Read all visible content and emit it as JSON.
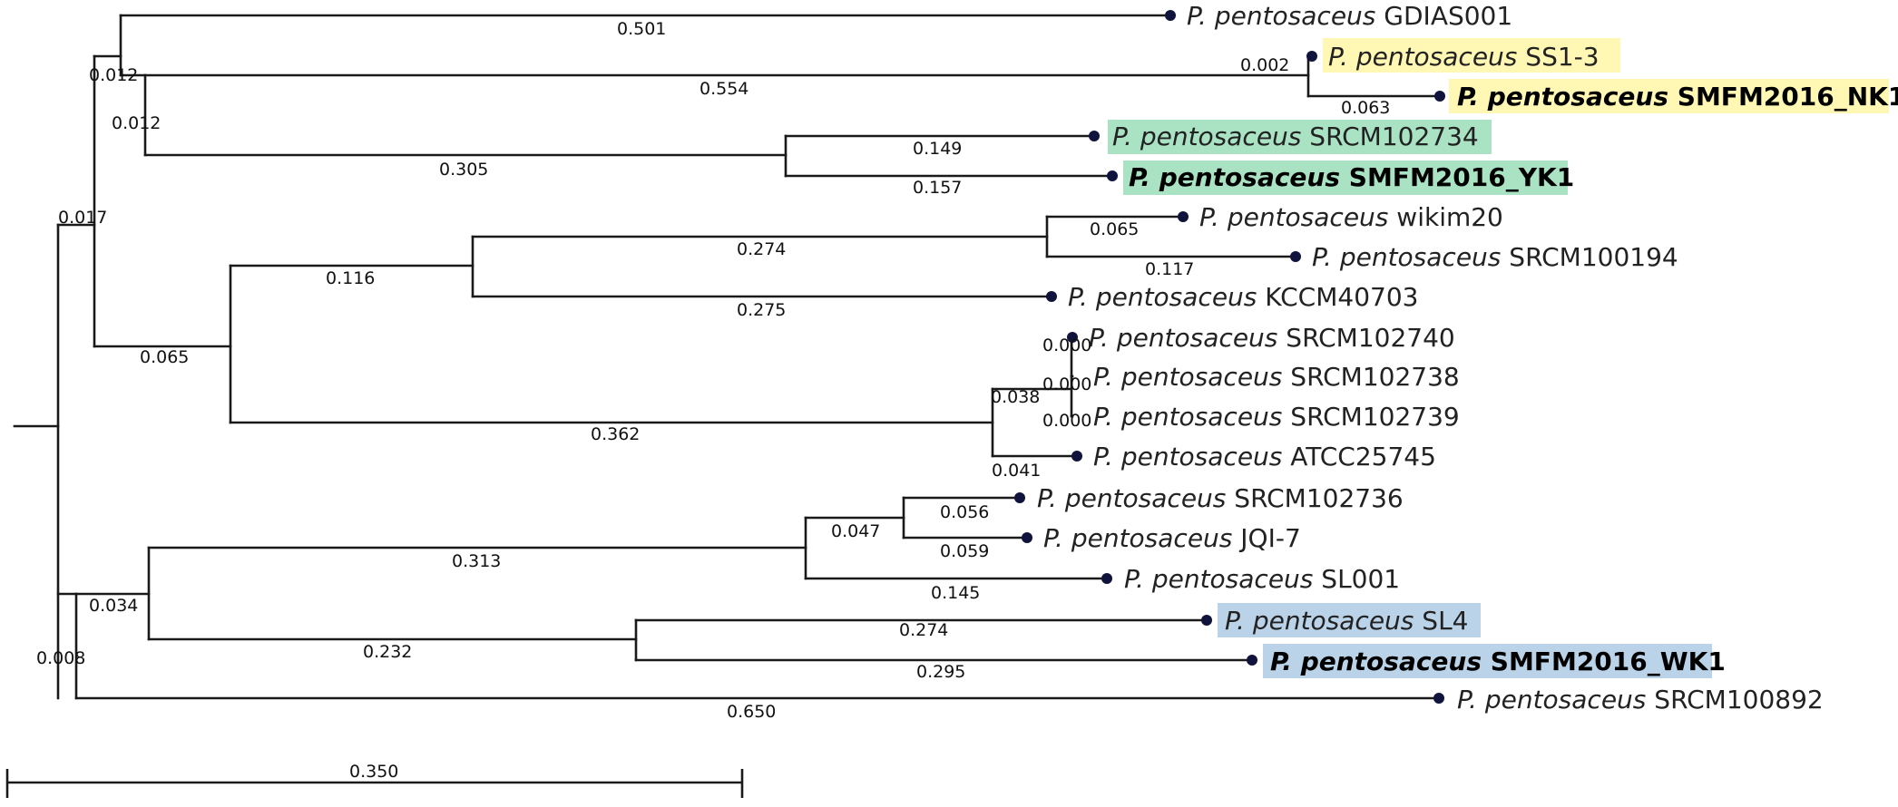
{
  "tree": {
    "tips": [
      {
        "id": "gdias001",
        "genus": "P. pentosaceus",
        "strain": "GDIAS001",
        "highlight": "",
        "bold": false
      },
      {
        "id": "ss1-3",
        "genus": "P. pentosaceus",
        "strain": "SS1-3",
        "highlight": "yellow",
        "bold": false
      },
      {
        "id": "nk1",
        "genus": "P. pentosaceus",
        "strain": "SMFM2016_NK1",
        "highlight": "yellow",
        "bold": true
      },
      {
        "id": "srcm102734",
        "genus": "P. pentosaceus",
        "strain": "SRCM102734",
        "highlight": "green",
        "bold": false
      },
      {
        "id": "yk1",
        "genus": "P. pentosaceus",
        "strain": "SMFM2016_YK1",
        "highlight": "green",
        "bold": true
      },
      {
        "id": "wikim20",
        "genus": "P. pentosaceus",
        "strain": "wikim20",
        "highlight": "",
        "bold": false
      },
      {
        "id": "srcm100194",
        "genus": "P. pentosaceus",
        "strain": "SRCM100194",
        "highlight": "",
        "bold": false
      },
      {
        "id": "kccm40703",
        "genus": "P. pentosaceus",
        "strain": "KCCM40703",
        "highlight": "",
        "bold": false
      },
      {
        "id": "srcm102740",
        "genus": "P. pentosaceus",
        "strain": "SRCM102740",
        "highlight": "",
        "bold": false
      },
      {
        "id": "srcm102738",
        "genus": "P. pentosaceus",
        "strain": "SRCM102738",
        "highlight": "",
        "bold": false
      },
      {
        "id": "srcm102739",
        "genus": "P. pentosaceus",
        "strain": "SRCM102739",
        "highlight": "",
        "bold": false
      },
      {
        "id": "atcc25745",
        "genus": "P. pentosaceus",
        "strain": "ATCC25745",
        "highlight": "",
        "bold": false
      },
      {
        "id": "srcm102736",
        "genus": "P. pentosaceus",
        "strain": "SRCM102736",
        "highlight": "",
        "bold": false
      },
      {
        "id": "jqi7",
        "genus": "P. pentosaceus",
        "strain": "JQI-7",
        "highlight": "",
        "bold": false
      },
      {
        "id": "sl001",
        "genus": "P. pentosaceus",
        "strain": "SL001",
        "highlight": "",
        "bold": false
      },
      {
        "id": "sl4",
        "genus": "P. pentosaceus",
        "strain": "SL4",
        "highlight": "blue",
        "bold": false
      },
      {
        "id": "wk1",
        "genus": "P. pentosaceus",
        "strain": "SMFM2016_WK1",
        "highlight": "blue",
        "bold": true
      },
      {
        "id": "srcm100892",
        "genus": "P. pentosaceus",
        "strain": "SRCM100892",
        "highlight": "",
        "bold": false
      }
    ],
    "branch_lengths": [
      "0.501",
      "0.012",
      "0.554",
      "0.002",
      "0.063",
      "0.012",
      "0.305",
      "0.149",
      "0.157",
      "0.017",
      "0.274",
      "0.065",
      "0.117",
      "0.116",
      "0.275",
      "0.065",
      "0.000",
      "0.000",
      "0.000",
      "0.038",
      "0.041",
      "0.362",
      "0.056",
      "0.047",
      "0.059",
      "0.313",
      "0.145",
      "0.034",
      "0.274",
      "0.232",
      "0.295",
      "0.008",
      "0.650"
    ],
    "scale_bar_label": "0.350",
    "highlight_colors": {
      "yellow": "#fff7b3",
      "green": "#a9e3c4",
      "blue": "#bad3e8",
      "dot": "#10143c"
    }
  }
}
